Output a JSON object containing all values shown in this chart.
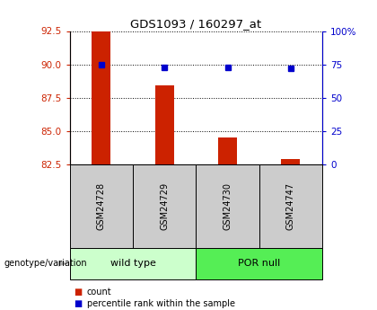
{
  "title": "GDS1093 / 160297_at",
  "samples": [
    "GSM24728",
    "GSM24729",
    "GSM24730",
    "GSM24747"
  ],
  "bar_values": [
    92.6,
    88.4,
    84.5,
    82.9
  ],
  "percentile_values": [
    74.5,
    72.5,
    73.0,
    72.0
  ],
  "y_min": 82.5,
  "y_max": 92.5,
  "y_ticks_left": [
    82.5,
    85.0,
    87.5,
    90.0,
    92.5
  ],
  "y_ticks_right": [
    0,
    25,
    50,
    75,
    100
  ],
  "bar_color": "#cc2200",
  "percentile_color": "#0000cc",
  "groups": [
    {
      "label": "wild type",
      "samples": [
        0,
        1
      ],
      "color": "#ccffcc"
    },
    {
      "label": "POR null",
      "samples": [
        2,
        3
      ],
      "color": "#55ee55"
    }
  ],
  "genotype_label": "genotype/variation",
  "legend_bar_label": "count",
  "legend_percentile_label": "percentile rank within the sample",
  "sample_box_color": "#cccccc",
  "bar_bottom": 82.5,
  "bar_width": 0.3
}
